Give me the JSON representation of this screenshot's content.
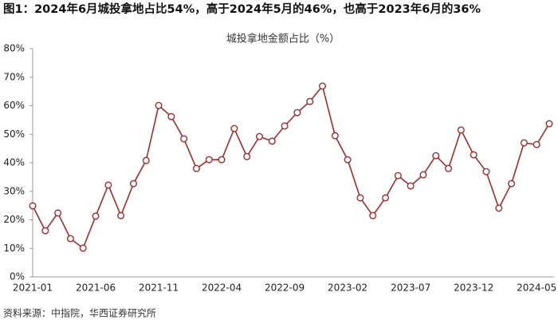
{
  "caption": "图1：2024年6月城投拿地占比54%，高于2024年5月的46%，也高于2023年6月的36%",
  "source": "资料来源：中指院，华西证券研究所",
  "chart_data": {
    "type": "line",
    "title": "城投拿地金额占比（%）",
    "categories": [
      "2021-01",
      null,
      null,
      null,
      null,
      "2021-06",
      null,
      null,
      null,
      null,
      "2021-11",
      null,
      null,
      null,
      null,
      "2022-04",
      null,
      null,
      null,
      null,
      "2022-09",
      null,
      null,
      null,
      null,
      "2023-02",
      null,
      null,
      null,
      null,
      "2023-07",
      null,
      null,
      null,
      null,
      "2023-12",
      null,
      null,
      null,
      null,
      "2024-05",
      null
    ],
    "values": [
      24.9,
      16.2,
      22.4,
      13.4,
      10.1,
      21.3,
      32.2,
      21.5,
      32.7,
      40.8,
      60.1,
      56.2,
      48.4,
      38.0,
      41.1,
      41.1,
      52.0,
      42.2,
      49.2,
      47.6,
      52.9,
      57.6,
      61.5,
      66.9,
      49.5,
      41.1,
      27.7,
      21.5,
      27.7,
      35.5,
      31.9,
      35.8,
      42.5,
      38.0,
      51.5,
      42.8,
      36.9,
      24.1,
      32.7,
      47.0,
      46.4,
      53.7
    ],
    "color": "#a62a2a",
    "ylim": [
      0,
      80
    ],
    "yticks": [
      {
        "value": 0,
        "label": "0%"
      },
      {
        "value": 10,
        "label": "10%"
      },
      {
        "value": 20,
        "label": "20%"
      },
      {
        "value": 30,
        "label": "30%"
      },
      {
        "value": 40,
        "label": "40%"
      },
      {
        "value": 50,
        "label": "50%"
      },
      {
        "value": 60,
        "label": "60%"
      },
      {
        "value": 70,
        "label": "70%"
      },
      {
        "value": 80,
        "label": "80%"
      }
    ],
    "grid": false
  }
}
